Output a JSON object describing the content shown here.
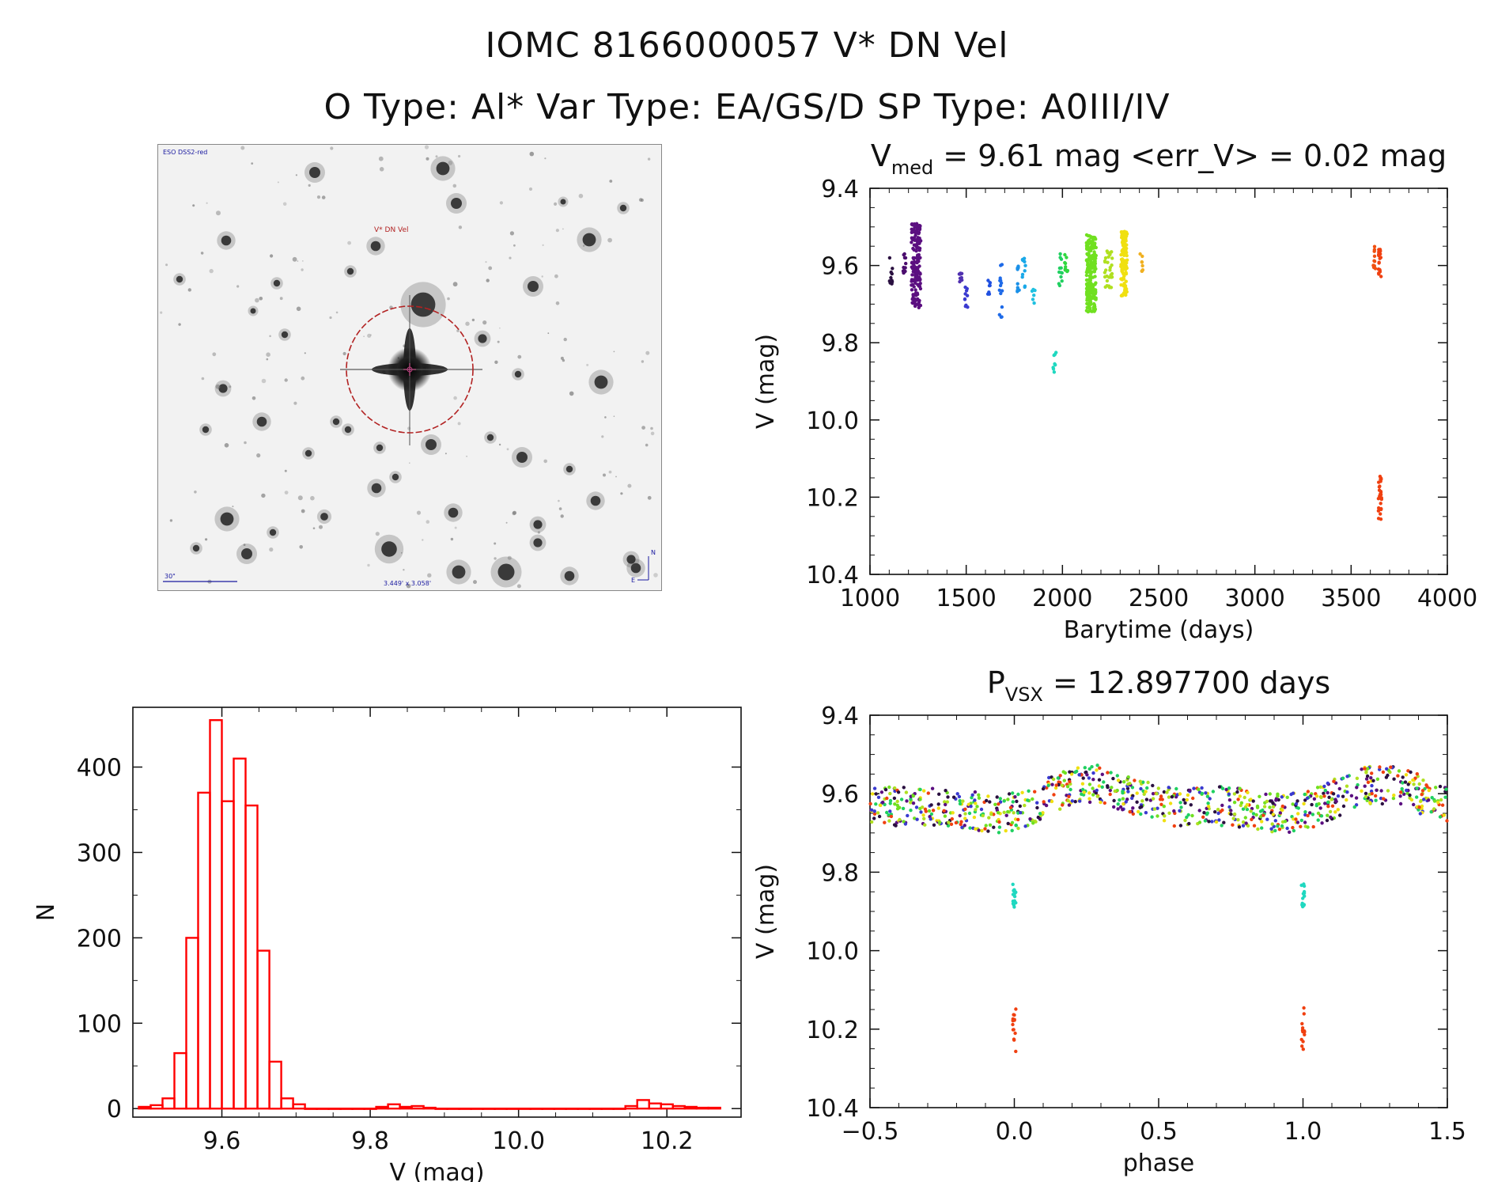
{
  "header": {
    "title_line1": "IOMC 8166000057   V* DN Vel",
    "title_line2": "O Type: Al*  Var Type: EA/GS/D  SP Type: A0III/IV"
  },
  "finder_chart": {
    "survey_label": "ESO DSS2-red",
    "target_label": "V* DN Vel",
    "scale_label": "30\"",
    "fov_label": "3.449' x 3.058'",
    "north_label": "N",
    "east_label": "E",
    "colors": {
      "circle": "#b22222",
      "labels": "#1a1aa0"
    }
  },
  "chart_data": [
    {
      "id": "light-curve",
      "type": "scatter",
      "title_main": "V",
      "title_sub": "med",
      "title_rest": " = 9.61 mag <err_V> = 0.02 mag",
      "xlabel": "Barytime (days)",
      "ylabel": "V (mag)",
      "xlim": [
        1000,
        4000
      ],
      "ylim": [
        10.4,
        9.4
      ],
      "y_inverted": true,
      "xticks": [
        "1000",
        "1500",
        "2000",
        "2500",
        "3000",
        "3500",
        "4000"
      ],
      "yticks": [
        "9.4",
        "9.6",
        "9.8",
        "10.0",
        "10.2",
        "10.4"
      ],
      "clusters": [
        {
          "x": 1110,
          "y": [
            9.56,
            9.65
          ],
          "n": 10,
          "color": "#2a1040"
        },
        {
          "x": 1180,
          "y": [
            9.57,
            9.66
          ],
          "n": 12,
          "color": "#4b0d6e"
        },
        {
          "x": 1240,
          "y": [
            9.49,
            9.71
          ],
          "n": 160,
          "color": "#5b0f80",
          "spread": 12
        },
        {
          "x": 1470,
          "y": [
            9.62,
            9.65
          ],
          "n": 8,
          "color": "#5030b0"
        },
        {
          "x": 1500,
          "y": [
            9.64,
            9.71
          ],
          "n": 10,
          "color": "#3a3ad0"
        },
        {
          "x": 1620,
          "y": [
            9.63,
            9.68
          ],
          "n": 8,
          "color": "#2050e0"
        },
        {
          "x": 1680,
          "y": [
            9.57,
            9.74
          ],
          "n": 14,
          "color": "#1e6ae8"
        },
        {
          "x": 1770,
          "y": [
            9.6,
            9.67
          ],
          "n": 10,
          "color": "#1a90e8"
        },
        {
          "x": 1800,
          "y": [
            9.58,
            9.66
          ],
          "n": 10,
          "color": "#1aa8e8"
        },
        {
          "x": 1850,
          "y": [
            9.65,
            9.7
          ],
          "n": 6,
          "color": "#20c0e0"
        },
        {
          "x": 1960,
          "y": [
            9.82,
            9.89
          ],
          "n": 8,
          "color": "#20d8c0"
        },
        {
          "x": 1990,
          "y": [
            9.55,
            9.66
          ],
          "n": 12,
          "color": "#20d060"
        },
        {
          "x": 2020,
          "y": [
            9.57,
            9.62
          ],
          "n": 10,
          "color": "#30d840"
        },
        {
          "x": 2150,
          "y": [
            9.52,
            9.72
          ],
          "n": 220,
          "color": "#70e020",
          "spread": 12
        },
        {
          "x": 2240,
          "y": [
            9.55,
            9.66
          ],
          "n": 30,
          "color": "#b0e020",
          "spread": 10
        },
        {
          "x": 2320,
          "y": [
            9.51,
            9.68
          ],
          "n": 110,
          "color": "#f0e010",
          "spread": 8
        },
        {
          "x": 2410,
          "y": [
            9.57,
            9.62
          ],
          "n": 8,
          "color": "#f0b020"
        },
        {
          "x": 3620,
          "y": [
            9.55,
            9.62
          ],
          "n": 10,
          "color": "#f05010"
        },
        {
          "x": 3650,
          "y": [
            9.55,
            9.63
          ],
          "n": 20,
          "color": "#f04010"
        },
        {
          "x": 3650,
          "y": [
            10.14,
            10.26
          ],
          "n": 25,
          "color": "#f04010"
        }
      ]
    },
    {
      "id": "histogram",
      "type": "bar",
      "xlabel": "V (mag)",
      "ylabel": "N",
      "xlim": [
        9.48,
        10.3
      ],
      "ylim": [
        -10,
        470
      ],
      "bin_width": 0.016,
      "xticks": [
        "9.6",
        "9.8",
        "10.0",
        "10.2"
      ],
      "yticks": [
        "0",
        "100",
        "200",
        "300",
        "400"
      ],
      "bin_left": [
        9.488,
        9.504,
        9.52,
        9.536,
        9.552,
        9.568,
        9.584,
        9.6,
        9.616,
        9.632,
        9.648,
        9.664,
        9.68,
        9.696,
        9.712,
        9.728,
        9.744,
        9.76,
        9.776,
        9.792,
        9.808,
        9.824,
        9.84,
        9.856,
        9.872,
        9.888,
        9.904,
        9.92,
        9.936,
        9.952,
        9.968,
        9.984,
        10.0,
        10.016,
        10.032,
        10.048,
        10.064,
        10.08,
        10.096,
        10.112,
        10.128,
        10.144,
        10.16,
        10.176,
        10.192,
        10.208,
        10.224,
        10.24,
        10.256
      ],
      "counts": [
        2,
        4,
        12,
        65,
        200,
        370,
        455,
        360,
        410,
        355,
        185,
        55,
        12,
        5,
        0,
        0,
        0,
        0,
        0,
        0,
        2,
        5,
        2,
        3,
        1,
        0,
        0,
        0,
        0,
        0,
        0,
        0,
        0,
        0,
        0,
        0,
        0,
        0,
        0,
        0,
        0,
        3,
        10,
        6,
        5,
        3,
        2,
        1,
        1
      ],
      "color": "#ff0000"
    },
    {
      "id": "phased-curve",
      "type": "scatter",
      "title_main": "P",
      "title_sub": "VSX",
      "title_rest": " = 12.897700 days",
      "xlabel": "phase",
      "ylabel": "V (mag)",
      "xlim": [
        -0.5,
        1.5
      ],
      "ylim": [
        10.4,
        9.4
      ],
      "y_inverted": true,
      "xticks": [
        "−0.5",
        "0.0",
        "0.5",
        "1.0",
        "1.5"
      ],
      "yticks": [
        "9.4",
        "9.6",
        "9.8",
        "10.0",
        "10.2",
        "10.4"
      ],
      "period_days": 12.8977,
      "palette": [
        "#5b0f80",
        "#2a1040",
        "#3a3ad0",
        "#70e020",
        "#b0e020",
        "#f0e010",
        "#f04010",
        "#20d060"
      ],
      "eclipse_points": [
        {
          "phase": 0.0,
          "y": [
            10.14,
            10.26
          ],
          "color": "#f04010"
        },
        {
          "phase": 0.0,
          "y": [
            9.83,
            9.89
          ],
          "color": "#20d8c0"
        },
        {
          "phase": 1.0,
          "y": [
            10.14,
            10.26
          ],
          "color": "#f04010"
        },
        {
          "phase": 1.0,
          "y": [
            9.83,
            9.89
          ],
          "color": "#20d8c0"
        }
      ]
    }
  ]
}
